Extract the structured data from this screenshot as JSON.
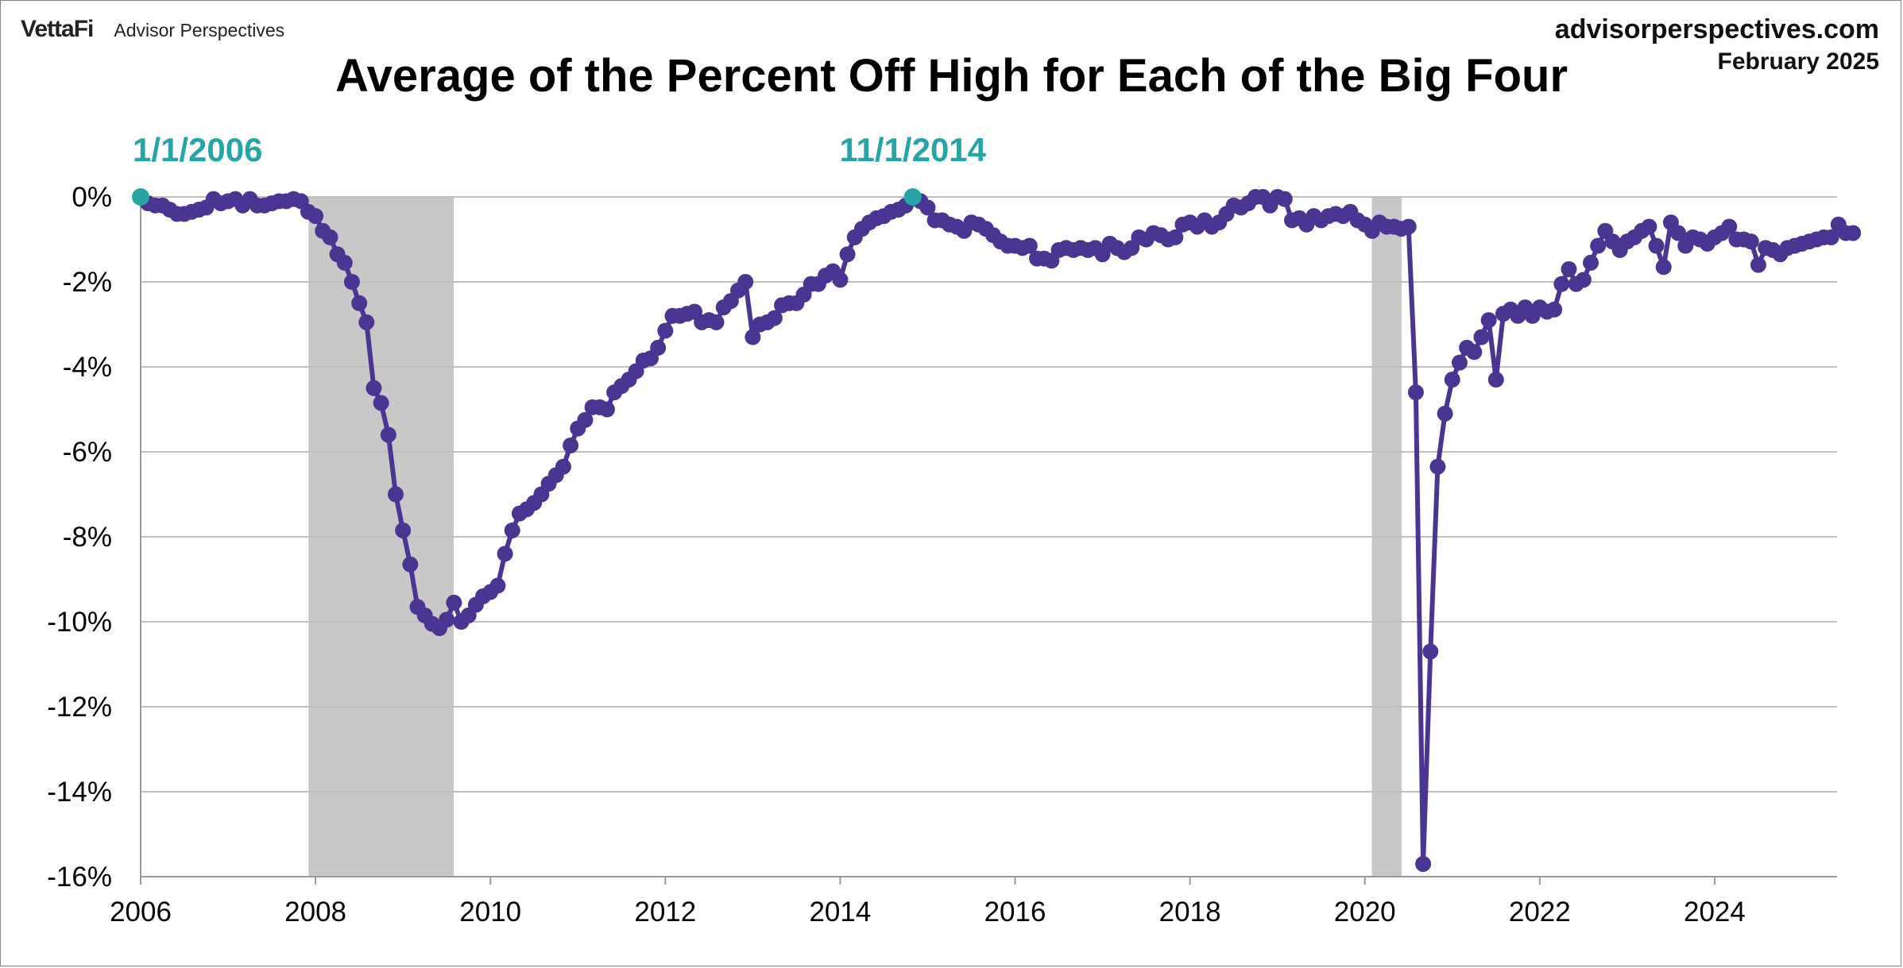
{
  "header": {
    "brand_logo": "VettaFi",
    "brand_name": "Advisor Perspectives",
    "site": "advisorperspectives.com",
    "date": "February 2025"
  },
  "chart_data": {
    "type": "line",
    "title": "Average of the Percent Off High for Each of the Big Four",
    "xlabel": "",
    "ylabel": "",
    "xlim": [
      2006.0,
      2025.4
    ],
    "ylim": [
      -16,
      0
    ],
    "grid": true,
    "x_ticks": [
      "2006",
      "2008",
      "2010",
      "2012",
      "2014",
      "2016",
      "2018",
      "2020",
      "2022",
      "2024"
    ],
    "y_ticks": [
      "0%",
      "-2%",
      "-4%",
      "-6%",
      "-8%",
      "-10%",
      "-12%",
      "-14%",
      "-16%"
    ],
    "recession_shading": [
      [
        2007.92,
        2009.58
      ],
      [
        2020.08,
        2020.42
      ]
    ],
    "line_color": "#4a3593",
    "annotation_color": "#26a4a6",
    "shade_color": "#c8c8c8",
    "annotations": [
      {
        "label": "1/1/2006",
        "x": 2006.0,
        "y": 0.0
      },
      {
        "label": "11/1/2014",
        "x": 2014.83,
        "y": 0.0
      }
    ],
    "series": [
      {
        "x_start": 2006.0,
        "x_step": 0.0833333,
        "values": [
          0.0,
          -0.15,
          -0.2,
          -0.2,
          -0.3,
          -0.4,
          -0.4,
          -0.35,
          -0.3,
          -0.25,
          -0.05,
          -0.15,
          -0.1,
          -0.05,
          -0.2,
          -0.05,
          -0.2,
          -0.2,
          -0.15,
          -0.1,
          -0.1,
          -0.05,
          -0.1,
          -0.35,
          -0.45,
          -0.8,
          -0.95,
          -1.35,
          -1.55,
          -2.0,
          -2.5,
          -2.95,
          -4.5,
          -4.85,
          -5.6,
          -7.0,
          -7.85,
          -8.65,
          -9.65,
          -9.85,
          -10.05,
          -10.15,
          -9.95,
          -9.55,
          -10.0,
          -9.85,
          -9.6,
          -9.4,
          -9.3,
          -9.15,
          -8.4,
          -7.85,
          -7.45,
          -7.35,
          -7.2,
          -7.0,
          -6.75,
          -6.55,
          -6.35,
          -5.85,
          -5.45,
          -5.25,
          -4.95,
          -4.95,
          -5.0,
          -4.6,
          -4.45,
          -4.3,
          -4.1,
          -3.85,
          -3.8,
          -3.55,
          -3.15,
          -2.8,
          -2.8,
          -2.75,
          -2.7,
          -2.95,
          -2.9,
          -2.95,
          -2.6,
          -2.45,
          -2.2,
          -2.0,
          -3.3,
          -3.0,
          -2.95,
          -2.85,
          -2.55,
          -2.5,
          -2.5,
          -2.3,
          -2.05,
          -2.05,
          -1.85,
          -1.75,
          -1.95,
          -1.35,
          -0.95,
          -0.75,
          -0.6,
          -0.5,
          -0.45,
          -0.35,
          -0.3,
          -0.2,
          0.0,
          -0.1,
          -0.25,
          -0.55,
          -0.55,
          -0.65,
          -0.7,
          -0.8,
          -0.6,
          -0.65,
          -0.75,
          -0.9,
          -1.05,
          -1.15,
          -1.15,
          -1.2,
          -1.15,
          -1.45,
          -1.45,
          -1.5,
          -1.25,
          -1.2,
          -1.25,
          -1.2,
          -1.25,
          -1.2,
          -1.35,
          -1.1,
          -1.2,
          -1.3,
          -1.2,
          -0.95,
          -1.0,
          -0.85,
          -0.9,
          -1.0,
          -0.95,
          -0.65,
          -0.6,
          -0.7,
          -0.55,
          -0.7,
          -0.6,
          -0.4,
          -0.2,
          -0.25,
          -0.15,
          0.0,
          0.0,
          -0.2,
          0.0,
          -0.05,
          -0.55,
          -0.5,
          -0.65,
          -0.45,
          -0.55,
          -0.45,
          -0.4,
          -0.45,
          -0.35,
          -0.55,
          -0.65,
          -0.8,
          -0.6,
          -0.7,
          -0.7,
          -0.75,
          -0.7,
          -4.6,
          -15.7,
          -10.7,
          -6.35,
          -5.1,
          -4.3,
          -3.9,
          -3.55,
          -3.65,
          -3.3,
          -2.9,
          -4.3,
          -2.75,
          -2.65,
          -2.8,
          -2.6,
          -2.8,
          -2.6,
          -2.7,
          -2.65,
          -2.05,
          -1.7,
          -2.05,
          -1.95,
          -1.55,
          -1.15,
          -0.8,
          -1.05,
          -1.25,
          -1.05,
          -0.95,
          -0.8,
          -0.7,
          -1.15,
          -1.65,
          -0.6,
          -0.85,
          -1.15,
          -0.95,
          -1.0,
          -1.1,
          -0.95,
          -0.85,
          -0.7,
          -1.0,
          -1.0,
          -1.05,
          -1.6,
          -1.2,
          -1.25,
          -1.35,
          -1.2,
          -1.15,
          -1.1,
          -1.05,
          -1.0,
          -0.95,
          -0.95,
          -0.65,
          -0.85,
          -0.85
        ]
      }
    ]
  }
}
